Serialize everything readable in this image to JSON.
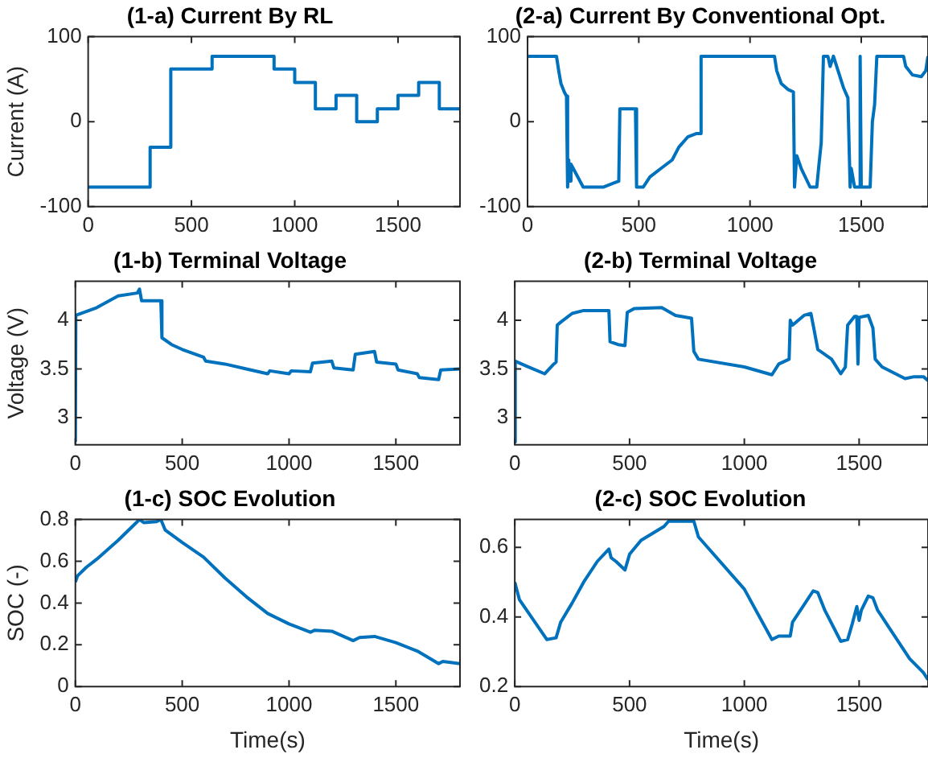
{
  "chart_data": [
    {
      "type": "step",
      "title": "(1-a) Current By RL",
      "ylabel": "Current (A)",
      "x": [
        0,
        300,
        400,
        600,
        900,
        1000,
        1100,
        1200,
        1300,
        1400,
        1500,
        1600,
        1700,
        1800
      ],
      "values": [
        -77,
        -30,
        62,
        77,
        62,
        46,
        15,
        31,
        0,
        15,
        31,
        46,
        15,
        15
      ],
      "color": "#0072bd",
      "xlim": [
        0,
        1800
      ],
      "xticks": [
        0,
        500,
        1000,
        1500
      ],
      "ylim": [
        -100,
        100
      ],
      "yticks": [
        -100,
        0,
        100
      ],
      "grid": false,
      "legend": false
    },
    {
      "type": "line",
      "title": "(2-a) Current By Conventional Opt.",
      "x": [
        0,
        130,
        140,
        150,
        165,
        175,
        180,
        185,
        190,
        195,
        250,
        340,
        410,
        415,
        485,
        490,
        520,
        550,
        600,
        650,
        680,
        720,
        760,
        775,
        780,
        1110,
        1120,
        1140,
        1170,
        1195,
        1200,
        1210,
        1230,
        1270,
        1300,
        1310,
        1320,
        1330,
        1350,
        1360,
        1375,
        1420,
        1440,
        1450,
        1455,
        1470,
        1490,
        1495,
        1500,
        1540,
        1550,
        1560,
        1570,
        1690,
        1700,
        1730,
        1770,
        1790,
        1800
      ],
      "values": [
        77,
        77,
        60,
        45,
        35,
        30,
        -77,
        -45,
        -70,
        -50,
        -77,
        -77,
        -70,
        15,
        15,
        -77,
        -77,
        -65,
        -55,
        -45,
        -30,
        -18,
        -14,
        -14,
        77,
        77,
        60,
        45,
        38,
        35,
        -77,
        -40,
        -55,
        -77,
        -77,
        -50,
        -25,
        77,
        77,
        65,
        77,
        40,
        28,
        -77,
        -55,
        -77,
        -77,
        77,
        -77,
        -77,
        0,
        20,
        77,
        77,
        65,
        55,
        53,
        60,
        77
      ],
      "color": "#0072bd",
      "xlim": [
        0,
        1800
      ],
      "xticks": [
        0,
        500,
        1000,
        1500
      ],
      "ylim": [
        -100,
        100
      ],
      "yticks": [
        -100,
        0,
        100
      ],
      "grid": false,
      "legend": false
    },
    {
      "type": "line",
      "title": "(1-b) Terminal Voltage",
      "ylabel": "Voltage (V)",
      "x": [
        0,
        2,
        100,
        200,
        290,
        300,
        310,
        400,
        405,
        450,
        500,
        600,
        610,
        700,
        800,
        900,
        910,
        1000,
        1010,
        1100,
        1110,
        1200,
        1210,
        1300,
        1310,
        1400,
        1410,
        1500,
        1510,
        1600,
        1610,
        1700,
        1710,
        1800
      ],
      "values": [
        2.75,
        4.05,
        4.13,
        4.25,
        4.28,
        4.32,
        4.2,
        4.2,
        3.82,
        3.75,
        3.7,
        3.62,
        3.58,
        3.55,
        3.5,
        3.45,
        3.48,
        3.45,
        3.48,
        3.47,
        3.56,
        3.58,
        3.51,
        3.49,
        3.65,
        3.68,
        3.57,
        3.55,
        3.49,
        3.45,
        3.41,
        3.39,
        3.49,
        3.5
      ],
      "color": "#0072bd",
      "xlim": [
        0,
        1800
      ],
      "xticks": [
        0,
        500,
        1000,
        1500
      ],
      "ylim": [
        2.72,
        4.4
      ],
      "yticks": [
        3,
        3.5,
        4
      ],
      "grid": false,
      "legend": false
    },
    {
      "type": "line",
      "title": "(2-b) Terminal Voltage",
      "x": [
        0,
        2,
        50,
        130,
        170,
        180,
        185,
        200,
        250,
        300,
        410,
        415,
        450,
        480,
        490,
        520,
        640,
        700,
        770,
        780,
        800,
        1000,
        1120,
        1150,
        1195,
        1200,
        1210,
        1260,
        1290,
        1300,
        1320,
        1380,
        1420,
        1440,
        1450,
        1480,
        1490,
        1495,
        1500,
        1540,
        1560,
        1570,
        1600,
        1700,
        1740,
        1780,
        1800
      ],
      "values": [
        2.75,
        3.58,
        3.53,
        3.45,
        3.55,
        3.57,
        3.95,
        3.98,
        4.07,
        4.1,
        4.1,
        3.78,
        3.75,
        3.74,
        4.08,
        4.12,
        4.13,
        4.05,
        4.02,
        3.68,
        3.6,
        3.52,
        3.44,
        3.55,
        3.6,
        4.0,
        3.95,
        4.05,
        4.07,
        3.95,
        3.7,
        3.6,
        3.45,
        3.52,
        3.95,
        4.04,
        4.04,
        3.55,
        4.03,
        4.05,
        3.92,
        3.6,
        3.52,
        3.4,
        3.42,
        3.42,
        3.38
      ],
      "color": "#0072bd",
      "xlim": [
        0,
        1800
      ],
      "xticks": [
        0,
        500,
        1000,
        1500
      ],
      "ylim": [
        2.72,
        4.4
      ],
      "yticks": [
        3,
        3.5,
        4
      ],
      "grid": false,
      "legend": false
    },
    {
      "type": "line",
      "title": "(1-c) SOC Evolution",
      "xlabel": "Time(s)",
      "ylabel": "SOC (-)",
      "x": [
        0,
        10,
        50,
        100,
        200,
        290,
        300,
        320,
        380,
        400,
        420,
        500,
        600,
        700,
        800,
        900,
        1000,
        1100,
        1120,
        1200,
        1300,
        1330,
        1400,
        1500,
        1600,
        1700,
        1720,
        1800
      ],
      "values": [
        0.5,
        0.53,
        0.57,
        0.61,
        0.7,
        0.79,
        0.8,
        0.785,
        0.79,
        0.8,
        0.75,
        0.69,
        0.62,
        0.52,
        0.43,
        0.35,
        0.3,
        0.26,
        0.27,
        0.265,
        0.22,
        0.235,
        0.24,
        0.21,
        0.17,
        0.11,
        0.12,
        0.11
      ],
      "color": "#0072bd",
      "xlim": [
        0,
        1800
      ],
      "xticks": [
        0,
        500,
        1000,
        1500
      ],
      "ylim": [
        0,
        0.8
      ],
      "yticks": [
        0,
        0.2,
        0.4,
        0.6,
        0.8
      ],
      "grid": false,
      "legend": false
    },
    {
      "type": "line",
      "title": "(2-c) SOC Evolution",
      "xlabel": "Time(s)",
      "x": [
        0,
        20,
        140,
        180,
        200,
        250,
        300,
        360,
        410,
        420,
        440,
        480,
        500,
        550,
        650,
        670,
        780,
        800,
        1000,
        1120,
        1150,
        1200,
        1210,
        1260,
        1300,
        1320,
        1350,
        1420,
        1450,
        1470,
        1490,
        1500,
        1510,
        1540,
        1560,
        1580,
        1650,
        1720,
        1780,
        1800
      ],
      "values": [
        0.5,
        0.45,
        0.335,
        0.34,
        0.385,
        0.44,
        0.5,
        0.56,
        0.595,
        0.57,
        0.56,
        0.535,
        0.58,
        0.62,
        0.66,
        0.675,
        0.675,
        0.63,
        0.48,
        0.335,
        0.345,
        0.345,
        0.385,
        0.435,
        0.475,
        0.47,
        0.42,
        0.33,
        0.335,
        0.38,
        0.43,
        0.39,
        0.42,
        0.46,
        0.455,
        0.42,
        0.35,
        0.28,
        0.24,
        0.22
      ],
      "color": "#0072bd",
      "xlim": [
        0,
        1800
      ],
      "xticks": [
        0,
        500,
        1000,
        1500
      ],
      "ylim": [
        0.2,
        0.68
      ],
      "yticks": [
        0.2,
        0.4,
        0.6
      ],
      "grid": false,
      "legend": false
    }
  ]
}
